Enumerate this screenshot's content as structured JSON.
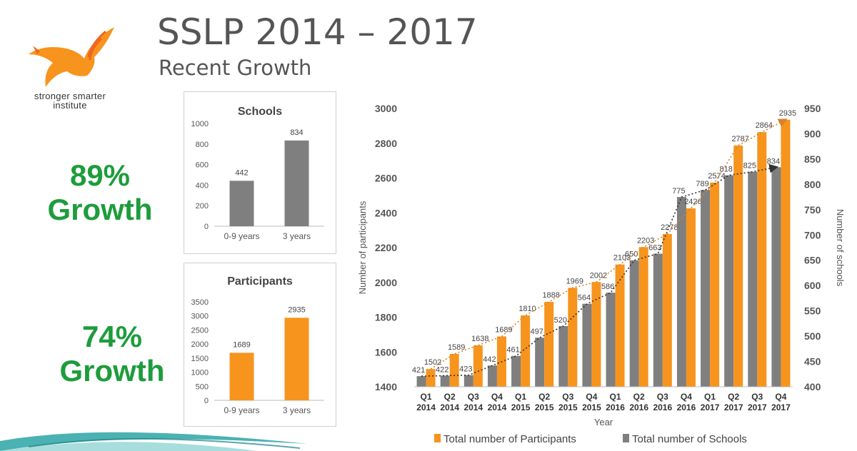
{
  "header": {
    "title": "SSLP 2014 – 2017",
    "subtitle": "Recent Growth"
  },
  "logo": {
    "line1": "stronger smarter",
    "line2": "institute",
    "icon": "eagle-icon"
  },
  "growth": [
    {
      "pct": "89%",
      "label": "Growth"
    },
    {
      "pct": "74%",
      "label": "Growth"
    }
  ],
  "colors": {
    "orange": "#F7941D",
    "gray": "#7F7F7F",
    "green": "#1E9C3C",
    "teal": "#2AA5A5"
  },
  "chart_data": [
    {
      "type": "bar",
      "title": "Schools",
      "categories": [
        "0-9 years",
        "3 years"
      ],
      "values": [
        442,
        834
      ],
      "ylim": [
        0,
        1000
      ],
      "yticks": [
        0,
        200,
        400,
        600,
        800,
        1000
      ],
      "color": "#7F7F7F"
    },
    {
      "type": "bar",
      "title": "Participants",
      "categories": [
        "0-9 years",
        "3 years"
      ],
      "values": [
        1689,
        2935
      ],
      "ylim": [
        0,
        3500
      ],
      "yticks": [
        0,
        500,
        1000,
        1500,
        2000,
        2500,
        3000,
        3500
      ],
      "color": "#F7941D"
    },
    {
      "type": "bar",
      "xlabel": "Year",
      "ylabel": "Number of participants",
      "y2label": "Number of schools",
      "categories": [
        [
          "Q1",
          "2014"
        ],
        [
          "Q2",
          "2014"
        ],
        [
          "Q3",
          "2014"
        ],
        [
          "Q4",
          "2014"
        ],
        [
          "Q1",
          "2015"
        ],
        [
          "Q2",
          "2015"
        ],
        [
          "Q3",
          "2015"
        ],
        [
          "Q4",
          "2015"
        ],
        [
          "Q1",
          "2016"
        ],
        [
          "Q2",
          "2016"
        ],
        [
          "Q3",
          "2016"
        ],
        [
          "Q4",
          "2016"
        ],
        [
          "Q1",
          "2017"
        ],
        [
          "Q2",
          "2017"
        ],
        [
          "Q3",
          "2017"
        ],
        [
          "Q4",
          "2017"
        ]
      ],
      "ylim": [
        1400,
        3000
      ],
      "yticks": [
        1400,
        1600,
        1800,
        2000,
        2200,
        2400,
        2600,
        2800,
        3000
      ],
      "y2lim": [
        400,
        950
      ],
      "y2ticks": [
        400,
        450,
        500,
        550,
        600,
        650,
        700,
        750,
        800,
        850,
        900,
        950
      ],
      "series": [
        {
          "name": "Total number of Participants",
          "axis": "left",
          "color": "#F7941D",
          "values": [
            1502,
            1589,
            1638,
            1689,
            1810,
            1888,
            1969,
            2002,
            2103,
            2203,
            2278,
            2426,
            2574,
            2787,
            2864,
            2935
          ]
        },
        {
          "name": "Total number of Schools",
          "axis": "right",
          "color": "#7F7F7F",
          "values": [
            421,
            422,
            423,
            442,
            461,
            497,
            520,
            564,
            586,
            650,
            663,
            775,
            789,
            818,
            825,
            834
          ]
        }
      ],
      "trendlines": true,
      "legend": "bottom"
    }
  ]
}
